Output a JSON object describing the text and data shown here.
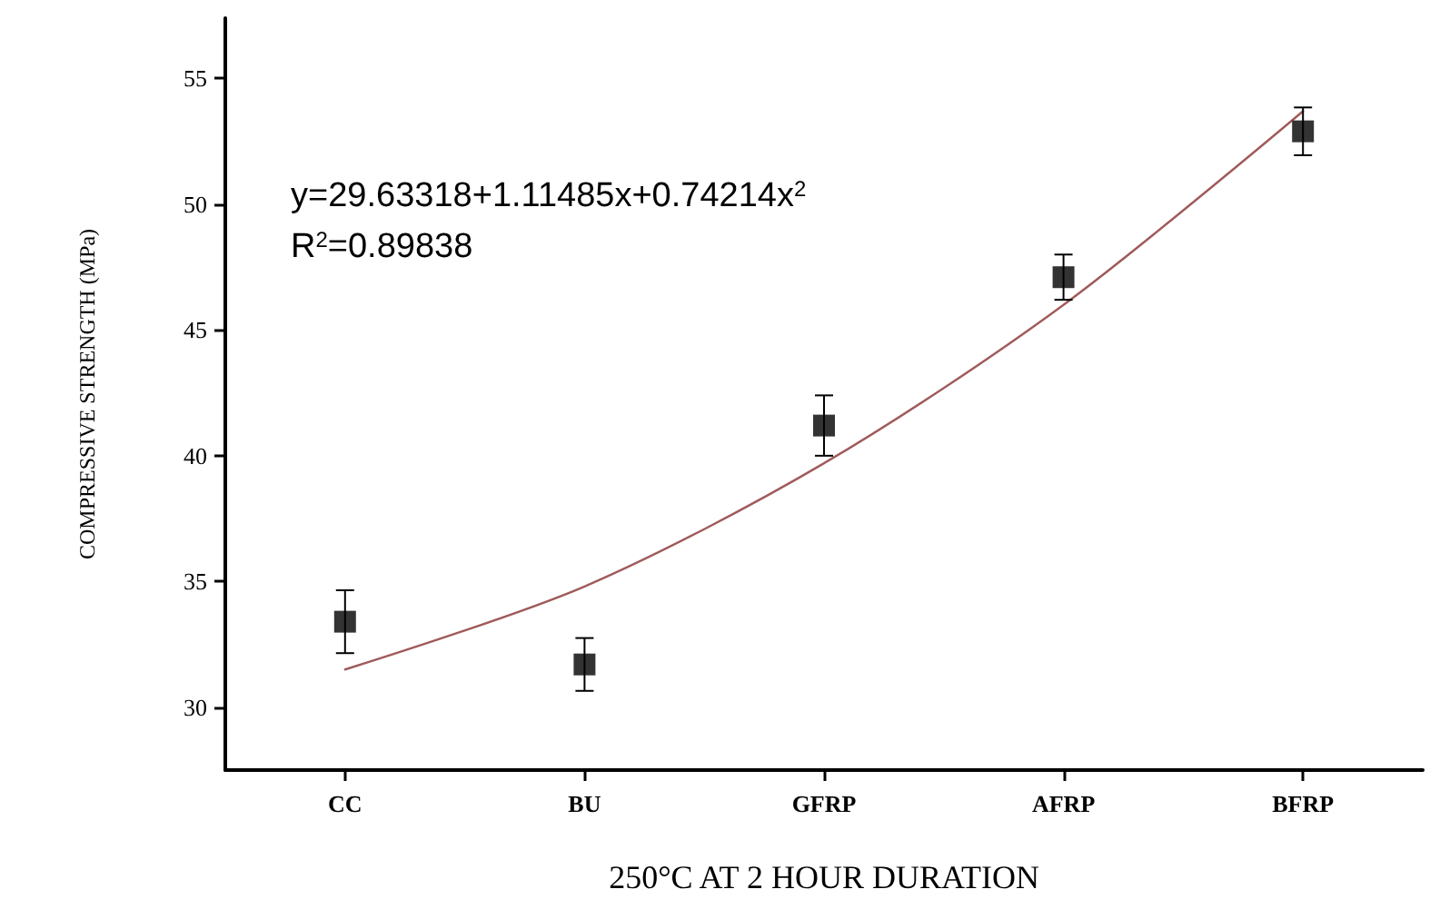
{
  "chart_data": {
    "type": "scatter",
    "xlabel": "250°C AT 2 HOUR DURATION",
    "ylabel": "COMPRESSIVE STRENGTH (MPa)",
    "categories": [
      "CC",
      "BU",
      "GFRP",
      "AFRP",
      "BFRP"
    ],
    "series": [
      {
        "color": "#000000",
        "values": [
          33.4,
          31.7,
          41.2,
          47.1,
          52.9
        ],
        "errors": [
          1.25,
          1.05,
          1.2,
          0.9,
          0.95
        ],
        "marker": "square"
      },
      {
        "type": "line",
        "color": "#a05a5a",
        "x": [
          "CC",
          "BU",
          "GFRP",
          "AFRP",
          "BFRP"
        ],
        "values": [
          31.5,
          34.8,
          39.7,
          46.0,
          53.7
        ],
        "marker": "none",
        "line_style": "solid"
      }
    ],
    "annotations": [
      "y=29.63318+1.11485x+0.74214x$^{2}$",
      "R$^{2}$=0.89838"
    ],
    "ylim": [
      27.5,
      57.4
    ],
    "yticks": [
      30,
      35,
      40,
      45,
      50,
      55
    ],
    "grid": false
  }
}
